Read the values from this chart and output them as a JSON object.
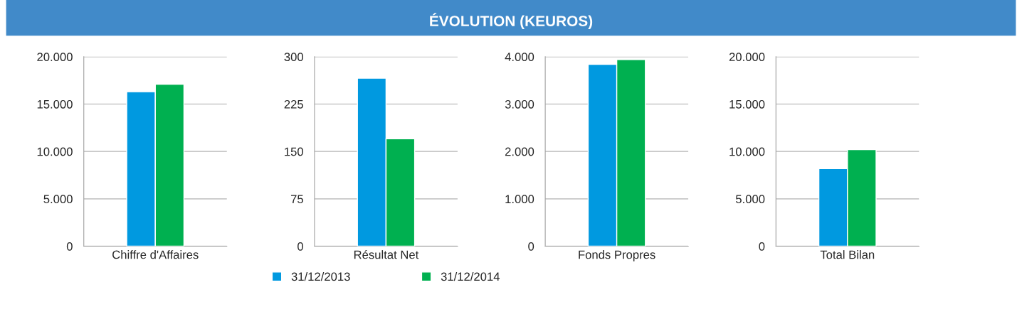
{
  "chart_data": [
    {
      "type": "bar",
      "categories": [
        "Chiffre d'Affaires"
      ],
      "ylim": [
        0,
        20000
      ],
      "yticks": [
        {
          "value": 0,
          "label": "0"
        },
        {
          "value": 5000,
          "label": "5.000"
        },
        {
          "value": 10000,
          "label": "10.000"
        },
        {
          "value": 15000,
          "label": "15.000"
        },
        {
          "value": 20000,
          "label": "20.000"
        }
      ],
      "grid": "y",
      "series": [
        {
          "color": "#0099e0",
          "values": [
            16300
          ]
        },
        {
          "color": "#00b050",
          "values": [
            17100
          ]
        }
      ]
    },
    {
      "type": "bar",
      "title": "ÉVOLUTION (KEUROS)",
      "categories": [
        "Résultat Net"
      ],
      "ylim": [
        0,
        300
      ],
      "yticks": [
        0,
        75,
        150,
        225,
        300
      ],
      "grid": "y",
      "legend": "bottom",
      "series": [
        {
          "name": "31/12/2013",
          "color": "#0099e0",
          "values": [
            266
          ]
        },
        {
          "name": "31/12/2014",
          "color": "#00b050",
          "values": [
            170
          ]
        }
      ]
    },
    {
      "type": "bar",
      "categories": [
        "Fonds Propres"
      ],
      "ylim": [
        0,
        4000
      ],
      "yticks": [
        {
          "value": 0,
          "label": "0"
        },
        {
          "value": 1000,
          "label": "1.000"
        },
        {
          "value": 2000,
          "label": "2.000"
        },
        {
          "value": 3000,
          "label": "3.000"
        },
        {
          "value": 4000,
          "label": "4.000"
        }
      ],
      "grid": "y",
      "series": [
        {
          "color": "#0099e0",
          "values": [
            3840
          ]
        },
        {
          "color": "#00b050",
          "values": [
            3940
          ]
        }
      ]
    },
    {
      "type": "bar",
      "categories": [
        "Total Bilan"
      ],
      "ylim": [
        0,
        20000
      ],
      "yticks": [
        {
          "value": 0,
          "label": "0"
        },
        {
          "value": 5000,
          "label": "5.000"
        },
        {
          "value": 10000,
          "label": "10.000"
        },
        {
          "value": 15000,
          "label": "15.000"
        },
        {
          "value": 20000,
          "label": "20.000"
        }
      ],
      "grid": "y",
      "series": [
        {
          "color": "#0099e0",
          "values": [
            8200
          ]
        },
        {
          "color": "#00b050",
          "values": [
            10200
          ]
        }
      ]
    }
  ]
}
